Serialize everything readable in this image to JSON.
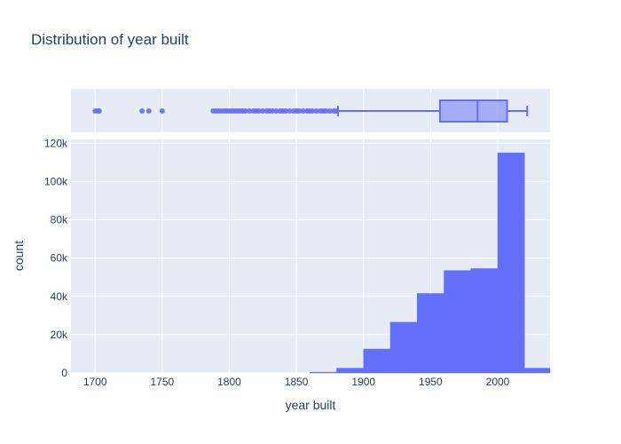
{
  "chart_data": {
    "type": "histogram",
    "title": "Distribution of year built",
    "xlabel": "year built",
    "ylabel": "count",
    "xlim": [
      1682,
      2039
    ],
    "ylim": [
      0,
      122000
    ],
    "x_ticks": [
      1700,
      1750,
      1800,
      1850,
      1900,
      1950,
      2000
    ],
    "x_tick_labels": [
      "1700",
      "1750",
      "1800",
      "1850",
      "1900",
      "1950",
      "2000"
    ],
    "y_ticks": [
      0,
      20000,
      40000,
      60000,
      80000,
      100000,
      120000
    ],
    "y_tick_labels": [
      "0",
      "20k",
      "40k",
      "60k",
      "80k",
      "100k",
      "120k"
    ],
    "bin_width": 20,
    "bins": [
      {
        "x0": 1860,
        "x1": 1880,
        "count": 400
      },
      {
        "x0": 1880,
        "x1": 1900,
        "count": 2500
      },
      {
        "x0": 1900,
        "x1": 1920,
        "count": 12500
      },
      {
        "x0": 1920,
        "x1": 1940,
        "count": 26500
      },
      {
        "x0": 1940,
        "x1": 1960,
        "count": 41500
      },
      {
        "x0": 1960,
        "x1": 1980,
        "count": 53500
      },
      {
        "x0": 1980,
        "x1": 2000,
        "count": 54500
      },
      {
        "x0": 2000,
        "x1": 2020,
        "count": 115000
      },
      {
        "x0": 2020,
        "x1": 2040,
        "count": 2500
      }
    ],
    "marginal_box": {
      "q1": 1957,
      "median": 1985,
      "q3": 2007,
      "lower_fence": 1881,
      "upper_fence": 2022,
      "outliers": [
        1700,
        1702,
        1703,
        1735,
        1740,
        1750,
        1788,
        1790,
        1792,
        1794,
        1796,
        1798,
        1800,
        1802,
        1804,
        1806,
        1808,
        1810,
        1812,
        1815,
        1818,
        1820,
        1822,
        1825,
        1828,
        1830,
        1832,
        1835,
        1838,
        1840,
        1842,
        1845,
        1848,
        1850,
        1852,
        1855,
        1858,
        1860,
        1862,
        1865,
        1868,
        1870,
        1872,
        1875,
        1878,
        1880
      ]
    },
    "colors": {
      "bar": "#636efa",
      "plot_bg": "#e5ecf6",
      "grid": "#ffffff",
      "text": "#2a3f5f"
    },
    "grid": true
  }
}
